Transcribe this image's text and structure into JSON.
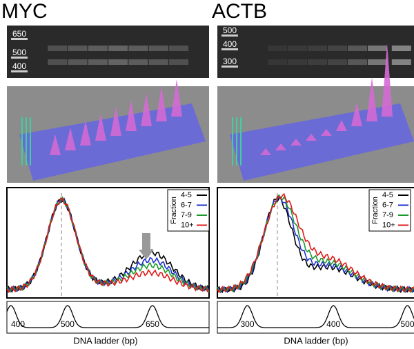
{
  "panels": [
    {
      "title": "MYC",
      "gel_ladder": [
        "650",
        "500",
        "400"
      ],
      "legend": {
        "title": "Fraction",
        "items": [
          {
            "name": "4-5",
            "color": "#000000"
          },
          {
            "name": "6-7",
            "color": "#1f2fd0"
          },
          {
            "name": "7-9",
            "color": "#1a9a2a"
          },
          {
            "name": "10+",
            "color": "#e01818"
          }
        ]
      },
      "ladder_peaks": [
        "400",
        "500",
        "650"
      ],
      "x_label": "DNA ladder (bp)"
    },
    {
      "title": "ACTB",
      "gel_ladder": [
        "500",
        "400",
        "300"
      ],
      "legend": {
        "title": "Fraction",
        "items": [
          {
            "name": "4-5",
            "color": "#000000"
          },
          {
            "name": "6-7",
            "color": "#1f2fd0"
          },
          {
            "name": "7-9",
            "color": "#1a9a2a"
          },
          {
            "name": "10+",
            "color": "#e01818"
          }
        ]
      },
      "ladder_peaks": [
        "300",
        "400",
        "500"
      ],
      "x_label": "DNA ladder (bp)"
    }
  ]
}
